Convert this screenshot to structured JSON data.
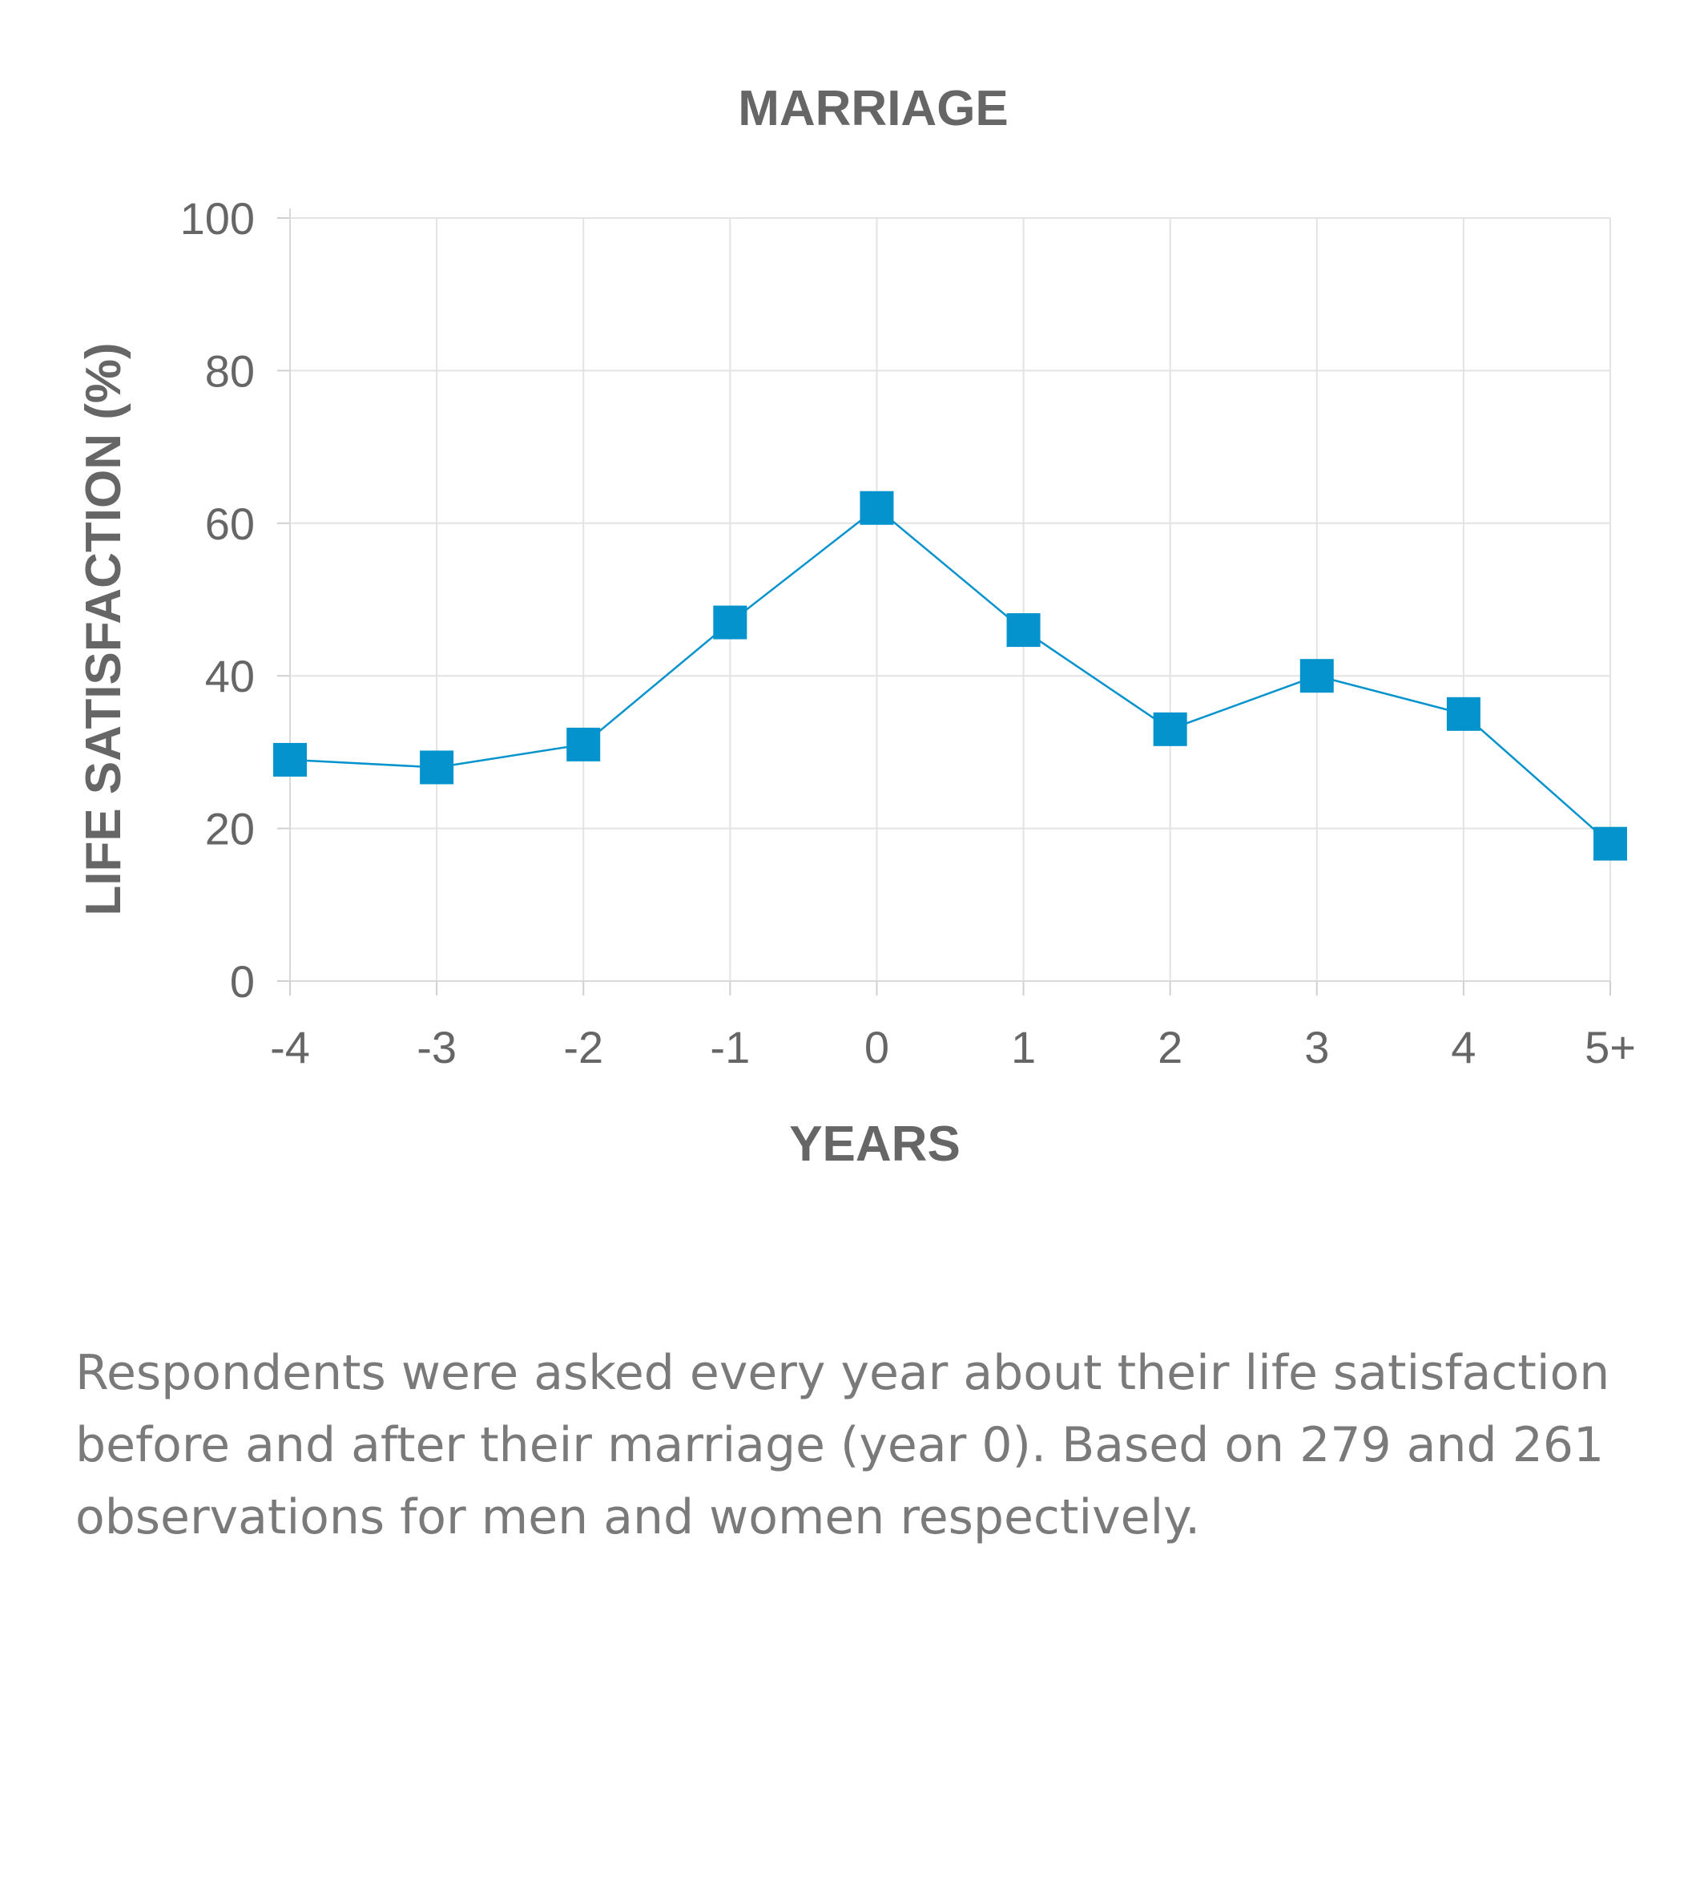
{
  "chart_data": {
    "type": "line",
    "title": "MARRIAGE",
    "xlabel": "YEARS",
    "ylabel": "LIFE SATISFACTION (%)",
    "categories": [
      "-4",
      "-3",
      "-2",
      "-1",
      "0",
      "1",
      "2",
      "3",
      "4",
      "5+"
    ],
    "series": [
      {
        "values": [
          29,
          28,
          31,
          47,
          62,
          46,
          33,
          40,
          35,
          18
        ],
        "color": "#0493cc",
        "marker": "square"
      }
    ],
    "yticks": [
      "0",
      "20",
      "40",
      "60",
      "80",
      "100"
    ],
    "ylim": [
      0,
      100
    ],
    "grid": true,
    "legend": "none"
  },
  "caption": "Respondents were asked every year about their life satisfaction before and after their marriage (year 0). Based on 279 and 261 observations for men and women respectively.",
  "colors": {
    "series": "#0493cc",
    "text": "#666666",
    "grid": "#e3e3e3",
    "caption": "#7a7a7a"
  }
}
